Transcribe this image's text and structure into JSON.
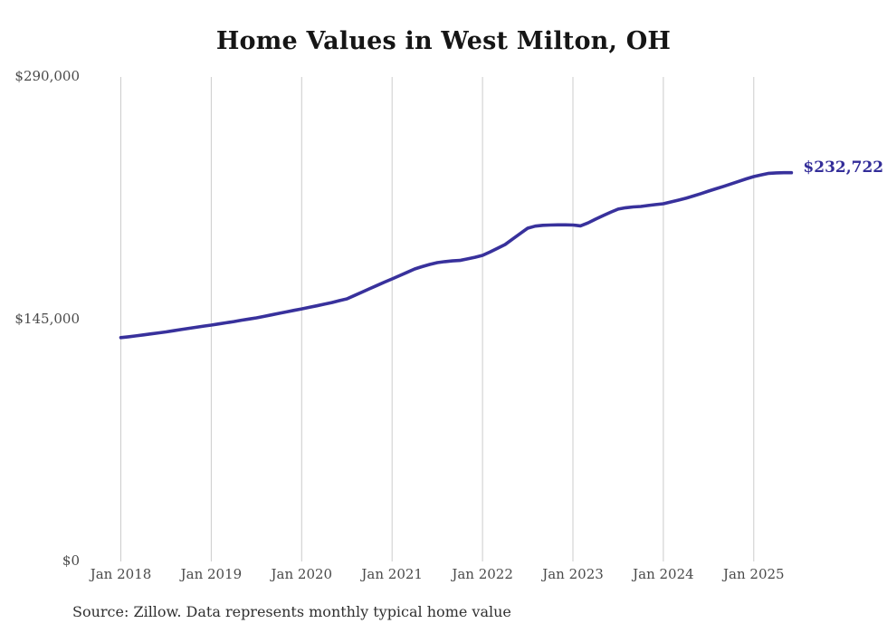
{
  "chart_data": {
    "type": "line",
    "title": "Home Values in West Milton, OH",
    "source_note": "Source: Zillow. Data represents monthly typical home value",
    "end_label": "$232,722",
    "final_value": 232722,
    "x_tick_labels": [
      "Jan 2018",
      "Jan 2019",
      "Jan 2020",
      "Jan 2021",
      "Jan 2022",
      "Jan 2023",
      "Jan 2024",
      "Jan 2025"
    ],
    "y_ticks": [
      {
        "value": 290000,
        "label": "$290,000"
      },
      {
        "value": 145000,
        "label": "$145,000"
      },
      {
        "value": 0,
        "label": "$0"
      }
    ],
    "ylim": [
      0,
      290000
    ],
    "x_range": [
      "Jan 2018",
      "Jun 2025"
    ],
    "frequency": "monthly",
    "grid": "vertical-only",
    "legend": "none",
    "colors": {
      "line": "#38319c",
      "end_label": "#332d99",
      "grid": "#cccccc",
      "tick_text": "#4a4a4a",
      "title_text": "#151515"
    },
    "series": [
      {
        "name": "Typical home value",
        "start_month": "Jan 2018",
        "values": [
          134000,
          134500,
          135000,
          135600,
          136200,
          136800,
          137400,
          138100,
          138800,
          139500,
          140200,
          140900,
          141500,
          142200,
          142900,
          143600,
          144400,
          145100,
          145800,
          146700,
          147600,
          148500,
          149400,
          150300,
          151200,
          152100,
          153000,
          154000,
          155000,
          156100,
          157200,
          159200,
          161200,
          163200,
          165200,
          167200,
          169100,
          171100,
          173100,
          175100,
          176500,
          177800,
          178900,
          179500,
          179900,
          180200,
          181100,
          182100,
          183200,
          185300,
          187500,
          189700,
          193000,
          196300,
          199500,
          200700,
          201200,
          201400,
          201500,
          201500,
          201400,
          200900,
          202600,
          204900,
          207000,
          209000,
          210900,
          211700,
          212200,
          212500,
          213100,
          213600,
          214100,
          215200,
          216300,
          217400,
          218800,
          220200,
          221700,
          223100,
          224500,
          226000,
          227500,
          229000,
          230400,
          231400,
          232300,
          232600,
          232700,
          232722
        ]
      }
    ]
  }
}
